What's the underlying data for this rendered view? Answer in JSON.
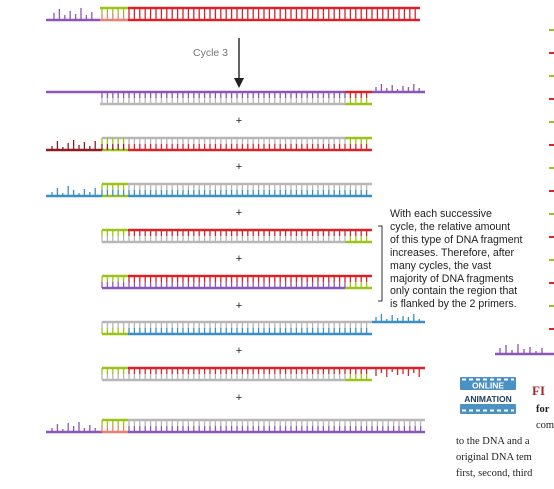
{
  "cycle_label": "Cycle 3",
  "plus_sign": "+",
  "annotation_lines": [
    "With each successive",
    "cycle, the relative amount",
    "of this type of DNA fragment",
    "increases. Therefore, after",
    "many cycles, the vast",
    "majority of DNA fragments",
    "only contain the region that",
    "is flanked by the 2 primers."
  ],
  "badge": {
    "line1": "ONLINE",
    "line2": "ANIMATION"
  },
  "caption": {
    "fig_prefix": "FI",
    "bold_fragment": "for",
    "line_com": "com",
    "line1": "to the DNA and a",
    "line2": "original DNA tem",
    "line3": "first, second, third"
  },
  "colors": {
    "purple": "#8a56b8",
    "gray": "#b7b7b7",
    "red": "#d8232a",
    "darkred": "#8c1c22",
    "blue": "#3a8fc8",
    "green": "#9cc31a",
    "salmon": "#e88070",
    "arrow": "#222222",
    "bracket": "#333333"
  }
}
